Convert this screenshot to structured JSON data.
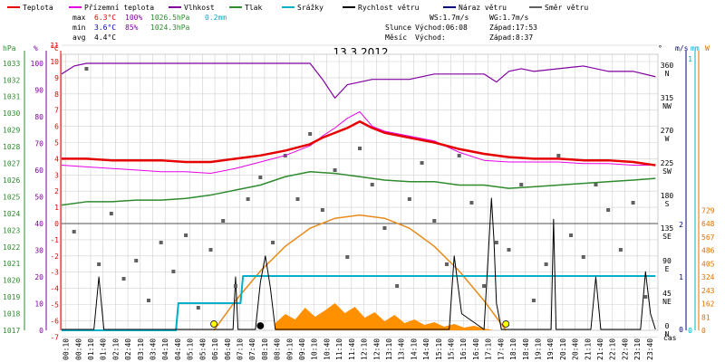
{
  "legend": [
    {
      "label": "Teplota",
      "color": "#e60000"
    },
    {
      "label": "Přízemní teplota",
      "color": "#e600e6"
    },
    {
      "label": "Vlhkost",
      "color": "#8000a0"
    },
    {
      "label": "Tlak",
      "color": "#2e8b2e"
    },
    {
      "label": "Srážky",
      "color": "#00b0c8"
    },
    {
      "label": "Rychlost větru",
      "color": "#000000"
    },
    {
      "label": "Náraz větru",
      "color": "#000080"
    },
    {
      "label": "Směr větru",
      "color": "#606060"
    }
  ],
  "stats": {
    "max": {
      "label": "max",
      "temp": "6.3°C",
      "hum": "100%",
      "press": "1026.5hPa",
      "rain": "0.2mm"
    },
    "min": {
      "label": "min",
      "temp": "3.6°C",
      "hum": "85%",
      "press": "1024.3hPa"
    },
    "avg": {
      "label": "avg",
      "temp": "4.4°C"
    }
  },
  "info": {
    "ws": "WS:1.7m/s",
    "wg": "WG:1.7m/s",
    "sun_label": "Slunce",
    "sunrise": "Východ:06:08",
    "sunset": "Západ:17:53",
    "moon_label": "Měsíc",
    "moonrise": "Východ:",
    "moonset": "Západ:8:37"
  },
  "chart_data": {
    "type": "line",
    "title": "13.3.2012",
    "xlabel": "čas",
    "axis_units": {
      "pressure": "hPa",
      "humidity": "%",
      "temperature": "°C",
      "wind_dir": "°",
      "wind_speed": "m/s",
      "rain": "mm",
      "radiation": "W"
    },
    "x_ticks": [
      "00:10",
      "00:40",
      "01:10",
      "01:40",
      "02:10",
      "02:40",
      "03:10",
      "03:40",
      "04:10",
      "04:40",
      "05:10",
      "05:40",
      "06:10",
      "06:40",
      "07:10",
      "07:40",
      "08:10",
      "08:40",
      "09:10",
      "09:40",
      "10:10",
      "10:40",
      "11:10",
      "11:40",
      "12:10",
      "12:40",
      "13:10",
      "13:40",
      "14:10",
      "14:40",
      "15:10",
      "15:40",
      "16:10",
      "16:40",
      "17:10",
      "17:40",
      "18:10",
      "18:40",
      "19:10",
      "19:40",
      "20:10",
      "20:40",
      "21:10",
      "21:40",
      "22:10",
      "22:40",
      "23:10",
      "23:40"
    ],
    "pressure_ticks": [
      1017,
      1018,
      1019,
      1020,
      1021,
      1022,
      1023,
      1024,
      1025,
      1026,
      1027,
      1028,
      1029,
      1030,
      1031,
      1032,
      1033
    ],
    "humidity_ticks": [
      0,
      10,
      20,
      30,
      40,
      50,
      60,
      70,
      80,
      90,
      100
    ],
    "temp_ticks": [
      -7,
      -6,
      -5,
      -4,
      -3,
      -2,
      -1,
      0,
      1,
      2,
      3,
      4,
      5,
      6,
      7,
      8,
      9,
      10,
      11
    ],
    "wind_dir_ticks": [
      {
        "v": 0,
        "l": "0"
      },
      {
        "v": 45,
        "l": "45"
      },
      {
        "v": 90,
        "l": "90"
      },
      {
        "v": 135,
        "l": "135"
      },
      {
        "v": 180,
        "l": "180"
      },
      {
        "v": 225,
        "l": "225"
      },
      {
        "v": 270,
        "l": "270"
      },
      {
        "v": 315,
        "l": "315"
      },
      {
        "v": 360,
        "l": "360"
      }
    ],
    "wind_dir_labels": [
      {
        "v": 0,
        "l": "N"
      },
      {
        "v": 45,
        "l": "NE"
      },
      {
        "v": 90,
        "l": "E"
      },
      {
        "v": 135,
        "l": "SE"
      },
      {
        "v": 180,
        "l": "S"
      },
      {
        "v": 225,
        "l": "SW"
      },
      {
        "v": 270,
        "l": "W"
      },
      {
        "v": 315,
        "l": "NW"
      },
      {
        "v": 360,
        "l": "N"
      }
    ],
    "wind_speed_ticks": [
      {
        "v": 0,
        "l": "0"
      },
      {
        "v": 1,
        "l": "1"
      },
      {
        "v": 2,
        "l": "2"
      }
    ],
    "rain_ticks": [
      {
        "v": 0,
        "l": "0"
      },
      {
        "v": 1,
        "l": "1"
      }
    ],
    "radiation_ticks": [
      0,
      81,
      162,
      243,
      324,
      405,
      486,
      567,
      648,
      729
    ],
    "series": {
      "temperature": {
        "name": "Teplota",
        "unit": "°C",
        "x": [
          0,
          1,
          2,
          3,
          4,
          5,
          6,
          7,
          8,
          9,
          10,
          10.5,
          11,
          11.5,
          12,
          12.5,
          13,
          14,
          15,
          16,
          17,
          18,
          19,
          20,
          21,
          22,
          23,
          23.9
        ],
        "y": [
          4.0,
          4.0,
          3.9,
          3.9,
          3.9,
          3.8,
          3.8,
          4.0,
          4.2,
          4.5,
          4.9,
          5.3,
          5.6,
          5.9,
          6.3,
          5.9,
          5.6,
          5.3,
          5.0,
          4.6,
          4.3,
          4.1,
          4.0,
          4.0,
          3.9,
          3.9,
          3.8,
          3.6
        ]
      },
      "ground_temperature": {
        "name": "Přízemní teplota",
        "unit": "°C",
        "x": [
          0,
          1,
          2,
          3,
          4,
          5,
          6,
          7,
          8,
          9,
          10,
          10.5,
          11,
          11.5,
          12,
          12.5,
          13,
          14,
          15,
          16,
          17,
          18,
          19,
          20,
          21,
          22,
          23,
          23.9
        ],
        "y": [
          3.6,
          3.5,
          3.4,
          3.3,
          3.2,
          3.2,
          3.1,
          3.4,
          3.8,
          4.2,
          4.8,
          5.4,
          5.9,
          6.5,
          6.9,
          6.0,
          5.7,
          5.4,
          5.1,
          4.4,
          3.9,
          3.8,
          3.8,
          3.8,
          3.7,
          3.7,
          3.6,
          3.6
        ]
      },
      "humidity": {
        "name": "Vlhkost",
        "unit": "%",
        "x": [
          0,
          0.5,
          1,
          2,
          4,
          6,
          8,
          10,
          10.5,
          11,
          11.5,
          12,
          12.5,
          13,
          14,
          15,
          16,
          17,
          17.5,
          18,
          18.5,
          19,
          20,
          21,
          22,
          23,
          23.9
        ],
        "y": [
          96,
          99,
          100,
          100,
          100,
          100,
          100,
          100,
          94,
          87,
          92,
          93,
          94,
          94,
          94,
          96,
          96,
          96,
          93,
          97,
          98,
          97,
          98,
          99,
          97,
          97,
          95
        ]
      },
      "pressure": {
        "name": "Tlak",
        "unit": "hPa",
        "x": [
          0,
          1,
          2,
          3,
          4,
          5,
          6,
          7,
          8,
          9,
          10,
          11,
          12,
          13,
          14,
          15,
          16,
          17,
          18,
          19,
          20,
          21,
          22,
          23,
          23.9
        ],
        "y": [
          1024.5,
          1024.7,
          1024.7,
          1024.8,
          1024.8,
          1024.9,
          1025.1,
          1025.4,
          1025.7,
          1026.2,
          1026.5,
          1026.4,
          1026.2,
          1026.0,
          1025.9,
          1025.9,
          1025.7,
          1025.7,
          1025.5,
          1025.6,
          1025.7,
          1025.8,
          1025.9,
          1026.0,
          1026.1
        ]
      },
      "rain_cumulative": {
        "name": "Srážky",
        "unit": "mm",
        "x": [
          0,
          4.6,
          4.7,
          7.2,
          7.3,
          23.9
        ],
        "y": [
          0,
          0,
          0.1,
          0.1,
          0.2,
          0.2
        ]
      },
      "wind_speed": {
        "name": "Rychlost větru",
        "unit": "m/s",
        "x": [
          0,
          1.3,
          1.5,
          1.7,
          2,
          6.9,
          7.0,
          7.1,
          7.8,
          8,
          8.2,
          8.4,
          8.6,
          15.6,
          15.8,
          16.1,
          17,
          17.3,
          17.4,
          17.5,
          17.7,
          19.7,
          19.8,
          19.9,
          21.3,
          21.5,
          21.7,
          23.3,
          23.5,
          23.7,
          23.9
        ],
        "y": [
          0,
          0,
          1,
          0,
          0,
          0,
          1,
          0,
          0,
          0.9,
          1.4,
          0.8,
          0,
          0,
          1.4,
          0.3,
          0,
          2.5,
          1.7,
          0.5,
          0,
          0,
          2.1,
          0,
          0,
          1,
          0,
          0,
          1.1,
          0.3,
          0
        ]
      },
      "solar_radiation": {
        "name": "Záření",
        "unit": "W",
        "x": [
          6.13,
          7,
          8,
          9,
          10,
          11,
          12,
          13,
          14,
          15,
          16,
          17,
          17.88
        ],
        "y": [
          0,
          180,
          360,
          510,
          620,
          680,
          700,
          680,
          620,
          510,
          360,
          180,
          0
        ]
      },
      "wind_direction": {
        "name": "Směr větru",
        "unit": "°",
        "x": [
          0.5,
          1,
          1.5,
          2,
          2.5,
          3,
          3.5,
          4,
          4.5,
          5,
          5.5,
          6,
          6.5,
          7,
          7.5,
          8,
          8.5,
          9,
          9.5,
          10,
          10.5,
          11,
          11.5,
          12,
          12.5,
          13,
          13.5,
          14,
          14.5,
          15,
          15.5,
          16,
          16.5,
          17,
          17.5,
          18,
          18.5,
          19,
          19.5,
          20,
          20.5,
          21,
          21.5,
          22,
          22.5,
          23,
          23.5
        ],
        "y": [
          135,
          360,
          90,
          160,
          70,
          95,
          40,
          120,
          80,
          130,
          30,
          110,
          150,
          60,
          180,
          210,
          120,
          240,
          180,
          270,
          165,
          220,
          100,
          250,
          200,
          140,
          60,
          180,
          230,
          150,
          90,
          240,
          175,
          60,
          120,
          110,
          200,
          40,
          90,
          240,
          130,
          100,
          200,
          165,
          110,
          175,
          45
        ]
      }
    }
  }
}
